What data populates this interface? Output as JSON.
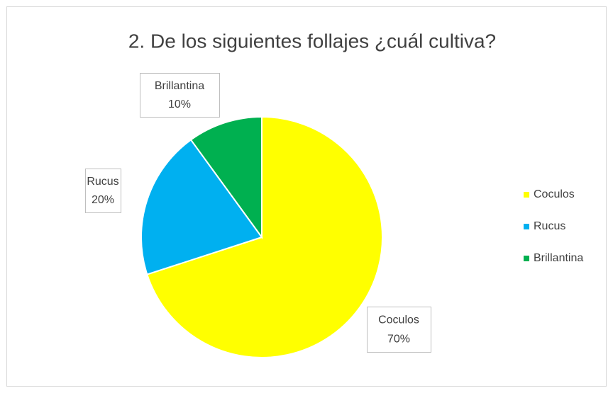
{
  "chart_data": {
    "type": "pie",
    "title": "2. De los siguientes follajes  ¿cuál cultiva?",
    "categories": [
      "Coculos",
      "Rucus",
      "Brillantina"
    ],
    "values": [
      70,
      20,
      10
    ],
    "value_labels": [
      "70%",
      "20%",
      "10%"
    ],
    "colors": [
      "#FFFF00",
      "#00B0F0",
      "#00B050"
    ],
    "legend": "right"
  }
}
